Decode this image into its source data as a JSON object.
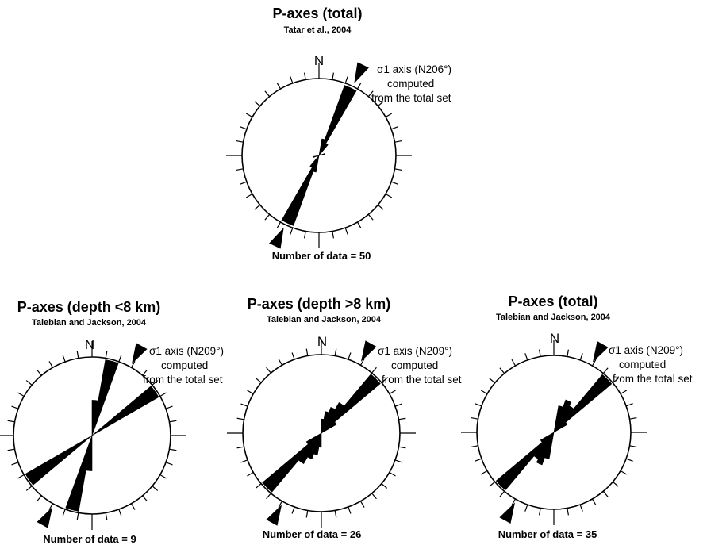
{
  "chart_data": [
    {
      "type": "rose",
      "title": "P-axes (total)",
      "subtitle": "Tatar et al., 2004",
      "count_text": "Number of data = 50",
      "north_label": "N",
      "sigma1_label": "σ1 axis (N206°)",
      "note_line1": "computed",
      "note_line2": "from the total set",
      "sigma1_azimuth_deg": 206,
      "bin_width_deg": 10,
      "petals": [
        {
          "azimuth": 25,
          "length": 0.97
        },
        {
          "azimuth": 205,
          "length": 0.97
        },
        {
          "azimuth": 15,
          "length": 0.22
        },
        {
          "azimuth": 195,
          "length": 0.22
        },
        {
          "azimuth": 35,
          "length": 0.18
        },
        {
          "azimuth": 215,
          "length": 0.18
        },
        {
          "azimuth": 75,
          "length": 0.08
        },
        {
          "azimuth": 255,
          "length": 0.08
        }
      ]
    },
    {
      "type": "rose",
      "title": "P-axes (depth <8 km)",
      "subtitle": "Talebian and Jackson, 2004",
      "count_text": "Number of data = 9",
      "north_label": "N",
      "sigma1_label": "σ1 axis (N209°)",
      "note_line1": "computed",
      "note_line2": "from the total set",
      "sigma1_azimuth_deg": 209,
      "bin_width_deg": 10,
      "petals": [
        {
          "azimuth": 15,
          "length": 0.98
        },
        {
          "azimuth": 195,
          "length": 0.98
        },
        {
          "azimuth": 55,
          "length": 0.98
        },
        {
          "azimuth": 235,
          "length": 0.98
        },
        {
          "azimuth": 5,
          "length": 0.45
        },
        {
          "azimuth": 185,
          "length": 0.45
        }
      ]
    },
    {
      "type": "rose",
      "title": "P-axes (depth >8 km)",
      "subtitle": "Talebian and Jackson, 2004",
      "count_text": "Number of data  = 26",
      "north_label": "N",
      "sigma1_label": "σ1 axis (N209°)",
      "note_line1": "computed",
      "note_line2": "from the total set",
      "sigma1_azimuth_deg": 209,
      "bin_width_deg": 10,
      "petals": [
        {
          "azimuth": 45,
          "length": 0.98
        },
        {
          "azimuth": 225,
          "length": 0.98
        },
        {
          "azimuth": 25,
          "length": 0.35
        },
        {
          "azimuth": 205,
          "length": 0.35
        },
        {
          "azimuth": 35,
          "length": 0.45
        },
        {
          "azimuth": 215,
          "length": 0.45
        },
        {
          "azimuth": 15,
          "length": 0.28
        },
        {
          "azimuth": 195,
          "length": 0.28
        },
        {
          "azimuth": 55,
          "length": 0.22
        },
        {
          "azimuth": 235,
          "length": 0.22
        },
        {
          "azimuth": 5,
          "length": 0.18
        },
        {
          "azimuth": 185,
          "length": 0.18
        }
      ]
    },
    {
      "type": "rose",
      "title": "P-axes (total)",
      "subtitle": "Talebian and Jackson, 2004",
      "count_text": "Number of data = 35",
      "north_label": "N",
      "sigma1_label": "σ1 axis (N209°)",
      "note_line1": "computed",
      "note_line2": "from the total set",
      "sigma1_azimuth_deg": 209,
      "bin_width_deg": 10,
      "petals": [
        {
          "azimuth": 45,
          "length": 0.98
        },
        {
          "azimuth": 225,
          "length": 0.98
        },
        {
          "azimuth": 25,
          "length": 0.45
        },
        {
          "azimuth": 205,
          "length": 0.45
        },
        {
          "azimuth": 15,
          "length": 0.35
        },
        {
          "azimuth": 195,
          "length": 0.35
        },
        {
          "azimuth": 35,
          "length": 0.4
        },
        {
          "azimuth": 215,
          "length": 0.4
        },
        {
          "azimuth": 55,
          "length": 0.2
        },
        {
          "azimuth": 235,
          "length": 0.2
        }
      ]
    }
  ]
}
